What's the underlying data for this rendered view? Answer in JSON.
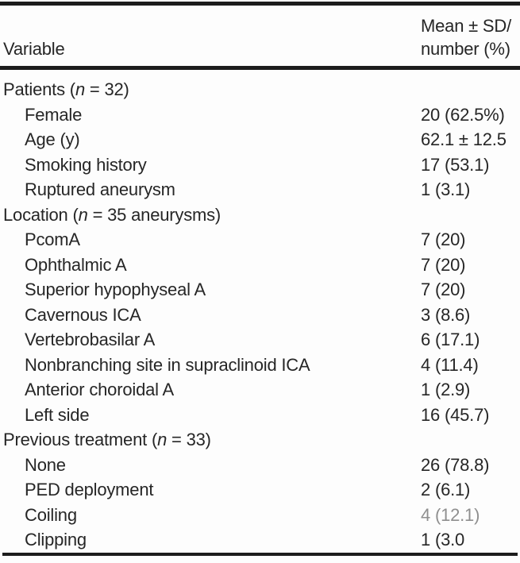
{
  "table": {
    "header": {
      "col1": "Variable",
      "col2_line1": "Mean ± SD/",
      "col2_line2": "number (%)"
    },
    "rows": [
      {
        "label": [
          {
            "t": "Patients ("
          },
          {
            "t": "n",
            "italic": true
          },
          {
            "t": " = 32)"
          }
        ],
        "value": "",
        "indent": false
      },
      {
        "label": [
          {
            "t": "Female"
          }
        ],
        "value": "20 (62.5%)",
        "indent": true
      },
      {
        "label": [
          {
            "t": "Age (y)"
          }
        ],
        "value": "62.1 ± 12.5",
        "indent": true
      },
      {
        "label": [
          {
            "t": "Smoking history"
          }
        ],
        "value": "17 (53.1)",
        "indent": true
      },
      {
        "label": [
          {
            "t": "Ruptured aneurysm"
          }
        ],
        "value": "1 (3.1)",
        "indent": true
      },
      {
        "label": [
          {
            "t": "Location ("
          },
          {
            "t": "n",
            "italic": true
          },
          {
            "t": " = 35 aneurysms)"
          }
        ],
        "value": "",
        "indent": false
      },
      {
        "label": [
          {
            "t": "PcomA"
          }
        ],
        "value": "7 (20)",
        "indent": true
      },
      {
        "label": [
          {
            "t": "Ophthalmic A"
          }
        ],
        "value": "7 (20)",
        "indent": true
      },
      {
        "label": [
          {
            "t": "Superior hypophyseal A"
          }
        ],
        "value": "7 (20)",
        "indent": true
      },
      {
        "label": [
          {
            "t": "Cavernous ICA"
          }
        ],
        "value": "3 (8.6)",
        "indent": true
      },
      {
        "label": [
          {
            "t": "Vertebrobasilar A"
          }
        ],
        "value": "6 (17.1)",
        "indent": true
      },
      {
        "label": [
          {
            "t": "Nonbranching site in supraclinoid ICA"
          }
        ],
        "value": "4 (11.4)",
        "indent": true
      },
      {
        "label": [
          {
            "t": "Anterior choroidal A"
          }
        ],
        "value": "1 (2.9)",
        "indent": true
      },
      {
        "label": [
          {
            "t": "Left side"
          }
        ],
        "value": "16 (45.7)",
        "indent": true
      },
      {
        "label": [
          {
            "t": "Previous treatment ("
          },
          {
            "t": "n",
            "italic": true
          },
          {
            "t": " = 33)"
          }
        ],
        "value": "",
        "indent": false
      },
      {
        "label": [
          {
            "t": "None"
          }
        ],
        "value": "26 (78.8)",
        "indent": true
      },
      {
        "label": [
          {
            "t": "PED deployment"
          }
        ],
        "value": "2 (6.1)",
        "indent": true
      },
      {
        "label": [
          {
            "t": "Coiling"
          }
        ],
        "value": "4 (12.1)",
        "indent": true,
        "value_faded": true
      },
      {
        "label": [
          {
            "t": "Clipping"
          }
        ],
        "value": "1 (3.0",
        "indent": true
      }
    ]
  },
  "colors": {
    "text": "#262626",
    "rule": "#1c1c1c",
    "background": "#fdfdfd",
    "faded_value": "#8f8f8f"
  }
}
